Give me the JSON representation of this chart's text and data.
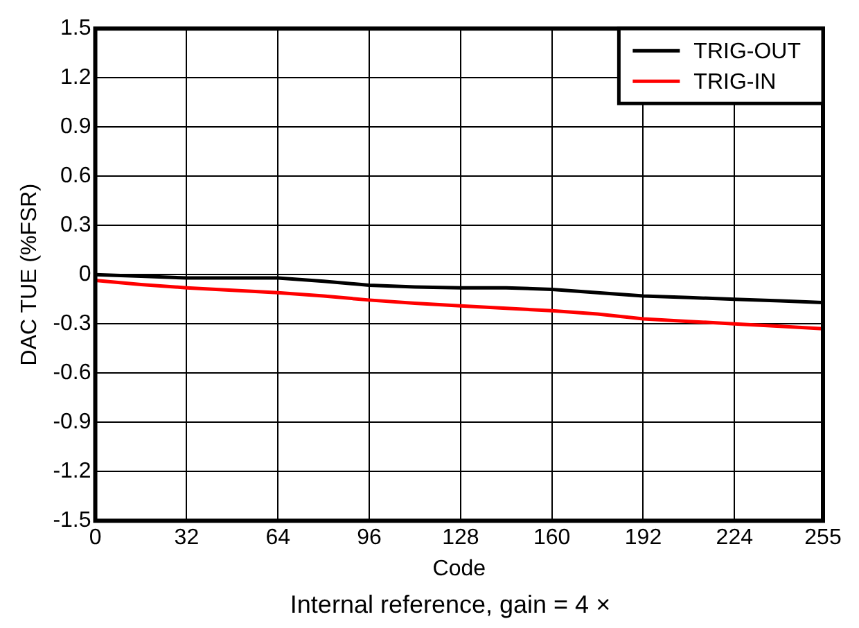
{
  "chart_data": {
    "type": "line",
    "xlabel": "Code",
    "ylabel": "DAC TUE (%FSR)",
    "annotations": [
      "Internal reference, gain = 4 ×"
    ],
    "x": [
      0,
      16,
      32,
      48,
      64,
      80,
      96,
      112,
      128,
      144,
      160,
      176,
      192,
      208,
      224,
      240,
      255
    ],
    "series": [
      {
        "name": "TRIG-OUT",
        "color": "#000000",
        "values": [
          0,
          -0.01,
          -0.02,
          -0.02,
          -0.02,
          -0.04,
          -0.065,
          -0.075,
          -0.08,
          -0.08,
          -0.09,
          -0.11,
          -0.13,
          -0.14,
          -0.15,
          -0.16,
          -0.17
        ]
      },
      {
        "name": "TRIG-IN",
        "color": "#ff0000",
        "values": [
          -0.035,
          -0.06,
          -0.08,
          -0.095,
          -0.11,
          -0.13,
          -0.155,
          -0.175,
          -0.19,
          -0.205,
          -0.22,
          -0.24,
          -0.27,
          -0.285,
          -0.3,
          -0.315,
          -0.33
        ]
      }
    ],
    "xlim": [
      0,
      255
    ],
    "xticks": [
      0,
      32,
      64,
      96,
      128,
      160,
      192,
      224,
      255
    ],
    "ylim": [
      -1.5,
      1.5
    ],
    "yticks": [
      {
        "value": -1.5,
        "label": "-1.5"
      },
      {
        "value": -1.2,
        "label": "-1.2"
      },
      {
        "value": -0.9,
        "label": "-0.9"
      },
      {
        "value": -0.6,
        "label": "-0.6"
      },
      {
        "value": -0.3,
        "label": "-0.3"
      },
      0,
      {
        "value": 0.3,
        "label": "0.3"
      },
      {
        "value": 0.6,
        "label": "0.6"
      },
      {
        "value": 0.9,
        "label": "0.9"
      },
      {
        "value": 1.2,
        "label": "1.2"
      },
      {
        "value": 1.5,
        "label": "1.5"
      }
    ],
    "grid": true,
    "legend": "top right",
    "marker": "none",
    "line_style": "solid"
  }
}
